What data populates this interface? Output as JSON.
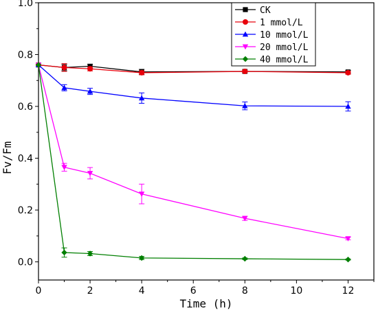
{
  "chart_data": {
    "type": "line",
    "xlabel": "Time (h)",
    "ylabel": "Fv/Fm",
    "xlim": [
      0,
      13
    ],
    "ylim": [
      -0.07,
      1.0
    ],
    "xticks": [
      0,
      2,
      4,
      6,
      8,
      10,
      12
    ],
    "yticks": [
      0.0,
      0.2,
      0.4,
      0.6,
      0.8,
      1.0
    ],
    "xtick_labels": [
      "0",
      "2",
      "4",
      "6",
      "8",
      "10",
      "12"
    ],
    "ytick_labels": [
      "0.0",
      "0.2",
      "0.4",
      "0.6",
      "0.8",
      "1.0"
    ],
    "legend_position": "top-right",
    "grid": false,
    "x": [
      0,
      1,
      2,
      4,
      8,
      12
    ],
    "series": [
      {
        "name": "CK",
        "color": "#000000",
        "marker": "square",
        "values": [
          0.76,
          0.75,
          0.755,
          0.733,
          0.735,
          0.733
        ],
        "errors": [
          0.0,
          0.012,
          0.008,
          0.01,
          0.005,
          0.006
        ]
      },
      {
        "name": "1 mmol/L",
        "color": "#e8000b",
        "marker": "circle",
        "values": [
          0.76,
          0.75,
          0.745,
          0.73,
          0.735,
          0.73
        ],
        "errors": [
          0.0,
          0.015,
          0.008,
          0.008,
          0.005,
          0.006
        ]
      },
      {
        "name": "10 mmol/L",
        "color": "#0000ff",
        "marker": "triangle-up",
        "values": [
          0.76,
          0.672,
          0.658,
          0.632,
          0.602,
          0.6
        ],
        "errors": [
          0.0,
          0.012,
          0.012,
          0.02,
          0.015,
          0.018
        ]
      },
      {
        "name": "20 mmol/L",
        "color": "#ff00ff",
        "marker": "triangle-down",
        "values": [
          0.76,
          0.365,
          0.342,
          0.262,
          0.168,
          0.09
        ],
        "errors": [
          0.0,
          0.015,
          0.022,
          0.038,
          0.008,
          0.005
        ]
      },
      {
        "name": "40 mmol/L",
        "color": "#007f00",
        "marker": "diamond",
        "values": [
          0.76,
          0.036,
          0.032,
          0.015,
          0.012,
          0.009
        ],
        "errors": [
          0.0,
          0.018,
          0.008,
          0.006,
          0.003,
          0.002
        ]
      }
    ]
  }
}
